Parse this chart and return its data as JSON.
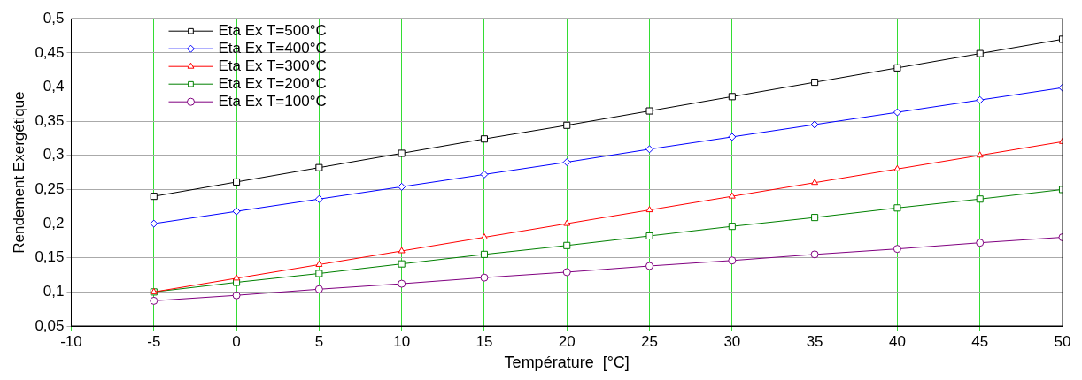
{
  "chart_data": {
    "type": "line",
    "xlabel": "Température  [°C]",
    "ylabel": "Rendement Exergétique",
    "x": [
      -5,
      0,
      5,
      10,
      15,
      20,
      25,
      30,
      35,
      40,
      45,
      50
    ],
    "series": [
      {
        "name": "Eta Ex T=500°C",
        "color": "#000000",
        "marker": "square",
        "values": [
          0.24,
          0.261,
          0.282,
          0.303,
          0.324,
          0.344,
          0.365,
          0.386,
          0.407,
          0.428,
          0.449,
          0.47
        ]
      },
      {
        "name": "Eta Ex T=400°C",
        "color": "#0000ff",
        "marker": "diamond",
        "values": [
          0.2,
          0.218,
          0.236,
          0.254,
          0.272,
          0.29,
          0.309,
          0.327,
          0.345,
          0.363,
          0.381,
          0.399
        ]
      },
      {
        "name": "Eta Ex T=300°C",
        "color": "#ff0000",
        "marker": "triangle",
        "values": [
          0.1,
          0.12,
          0.14,
          0.16,
          0.18,
          0.2,
          0.22,
          0.24,
          0.26,
          0.28,
          0.3,
          0.32
        ]
      },
      {
        "name": "Eta Ex T=200°C",
        "color": "#008000",
        "marker": "square",
        "values": [
          0.1,
          0.114,
          0.127,
          0.141,
          0.155,
          0.168,
          0.182,
          0.196,
          0.209,
          0.223,
          0.236,
          0.25
        ]
      },
      {
        "name": "Eta Ex T=100°C",
        "color": "#800080",
        "marker": "circle",
        "values": [
          0.087,
          0.095,
          0.104,
          0.112,
          0.121,
          0.129,
          0.138,
          0.146,
          0.155,
          0.163,
          0.172,
          0.18
        ]
      }
    ],
    "xlim": [
      -10,
      50
    ],
    "xticks": [
      -10,
      -5,
      0,
      5,
      10,
      15,
      20,
      25,
      30,
      35,
      40,
      45,
      50
    ],
    "ylim": [
      0.05,
      0.5
    ],
    "yticks": [
      {
        "value": 0.05,
        "label": "0,05"
      },
      {
        "value": 0.1,
        "label": "0,1"
      },
      {
        "value": 0.15,
        "label": "0,15"
      },
      {
        "value": 0.2,
        "label": "0,2"
      },
      {
        "value": 0.25,
        "label": "0,25"
      },
      {
        "value": 0.3,
        "label": "0,3"
      },
      {
        "value": 0.35,
        "label": "0,35"
      },
      {
        "value": 0.4,
        "label": "0,4"
      },
      {
        "value": 0.45,
        "label": "0,45"
      },
      {
        "value": 0.5,
        "label": "0,5"
      }
    ],
    "grid": true,
    "legend": "top left",
    "line_style": "solid"
  }
}
